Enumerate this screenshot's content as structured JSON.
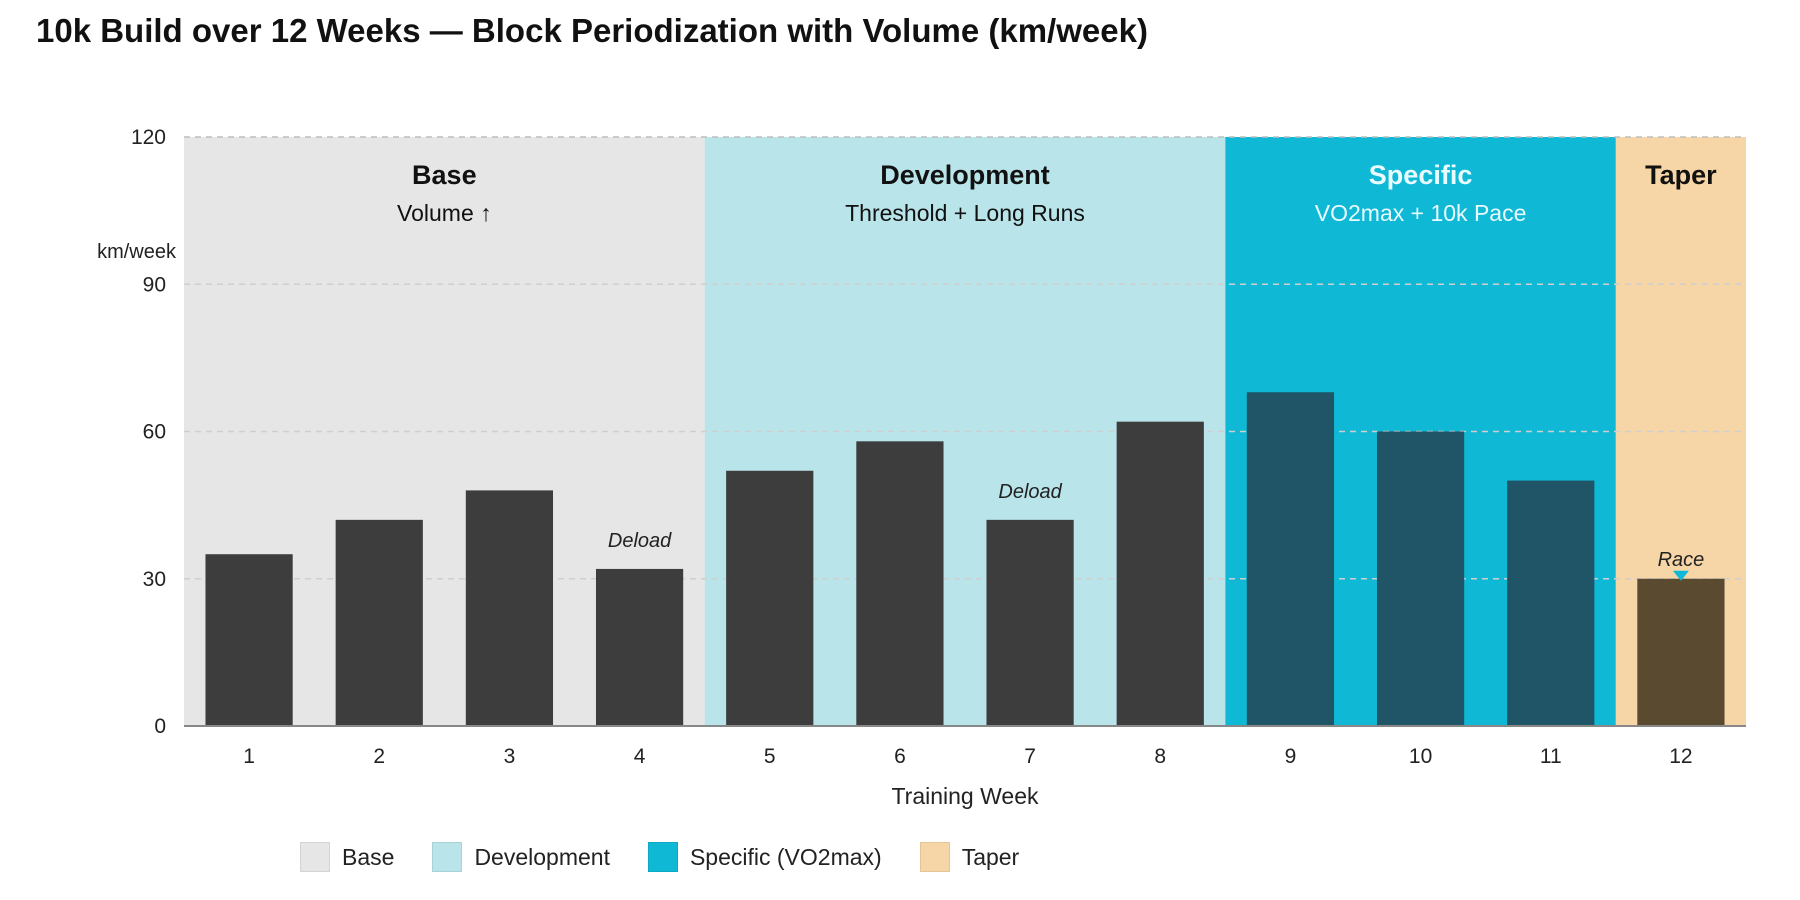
{
  "chart_data": {
    "type": "bar",
    "title": "10k Build over 12 Weeks — Block Periodization with Volume (km/week)",
    "xlabel": "Training Week",
    "ylabel": "km/week",
    "ylim": [
      0,
      120
    ],
    "yticks": [
      "0",
      "30",
      "60",
      "90",
      "120"
    ],
    "categories": [
      "1",
      "2",
      "3",
      "4",
      "5",
      "6",
      "7",
      "8",
      "9",
      "10",
      "11",
      "12"
    ],
    "values": [
      35,
      42,
      48,
      32,
      52,
      58,
      42,
      62,
      68,
      60,
      50,
      30
    ],
    "phases": [
      {
        "name": "Base",
        "subtitle": "Volume ↑",
        "start_week": 1,
        "end_week": 4,
        "color": "#e6e6e6",
        "bar_color": "#3d3d3d",
        "text_color": "#111111"
      },
      {
        "name": "Development",
        "subtitle": "Threshold + Long Runs",
        "start_week": 5,
        "end_week": 8,
        "color": "#b8e4ea",
        "bar_color": "#3d3d3d",
        "text_color": "#111111"
      },
      {
        "name": "Specific",
        "subtitle": "VO2max + 10k Pace",
        "start_week": 9,
        "end_week": 11,
        "color": "#0fb8d4",
        "bar_color": "#1f5566",
        "text_color": "#e8fbff"
      },
      {
        "name": "Taper",
        "subtitle": "",
        "start_week": 12,
        "end_week": 12,
        "color": "#f6d6a6",
        "bar_color": "#5a4a30",
        "text_color": "#111111"
      }
    ],
    "annotations": [
      {
        "week": 4,
        "text": "Deload"
      },
      {
        "week": 7,
        "text": "Deload"
      },
      {
        "week": 12,
        "text": "Race",
        "marker_color": "#0fb8d4"
      }
    ],
    "grid": true,
    "legend_position": "bottom",
    "legend": [
      {
        "label": "Base",
        "color": "#e6e6e6"
      },
      {
        "label": "Development",
        "color": "#b8e4ea"
      },
      {
        "label": "Specific (VO2max)",
        "color": "#0fb8d4"
      },
      {
        "label": "Taper",
        "color": "#f6d6a6"
      }
    ]
  }
}
